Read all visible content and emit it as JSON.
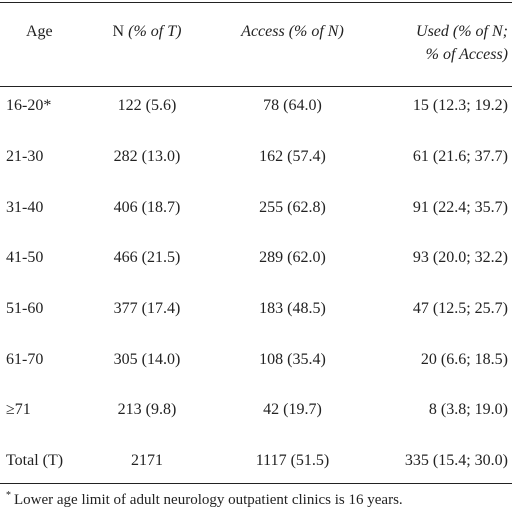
{
  "table": {
    "headers": {
      "age": "Age",
      "n_main": "N ",
      "n_italic": "(% of T)",
      "access": "Access (% of N)",
      "used_line1": "Used (% of N;",
      "used_line2": "% of Access)"
    },
    "rows": [
      {
        "age": "16-20*",
        "n": "122 (5.6)",
        "access": "78 (64.0)",
        "used": "15 (12.3; 19.2)"
      },
      {
        "age": "21-30",
        "n": "282 (13.0)",
        "access": "162 (57.4)",
        "used": "61 (21.6; 37.7)"
      },
      {
        "age": "31-40",
        "n": "406 (18.7)",
        "access": "255 (62.8)",
        "used": "91 (22.4; 35.7)"
      },
      {
        "age": "41-50",
        "n": "466 (21.5)",
        "access": "289 (62.0)",
        "used": "93 (20.0; 32.2)"
      },
      {
        "age": "51-60",
        "n": "377 (17.4)",
        "access": "183 (48.5)",
        "used": "47 (12.5; 25.7)"
      },
      {
        "age": "61-70",
        "n": "305 (14.0)",
        "access": "108 (35.4)",
        "used": "20 (6.6; 18.5)"
      },
      {
        "age": "≥71",
        "n": "213 (9.8)",
        "access": "42 (19.7)",
        "used": "8 (3.8; 19.0)"
      },
      {
        "age": "Total (T)",
        "n": "2171",
        "access": "1117 (51.5)",
        "used": "335 (15.4; 30.0)"
      }
    ],
    "footnote_marker": "*",
    "footnote": "Lower age limit of adult neurology outpatient clinics is 16 years."
  }
}
